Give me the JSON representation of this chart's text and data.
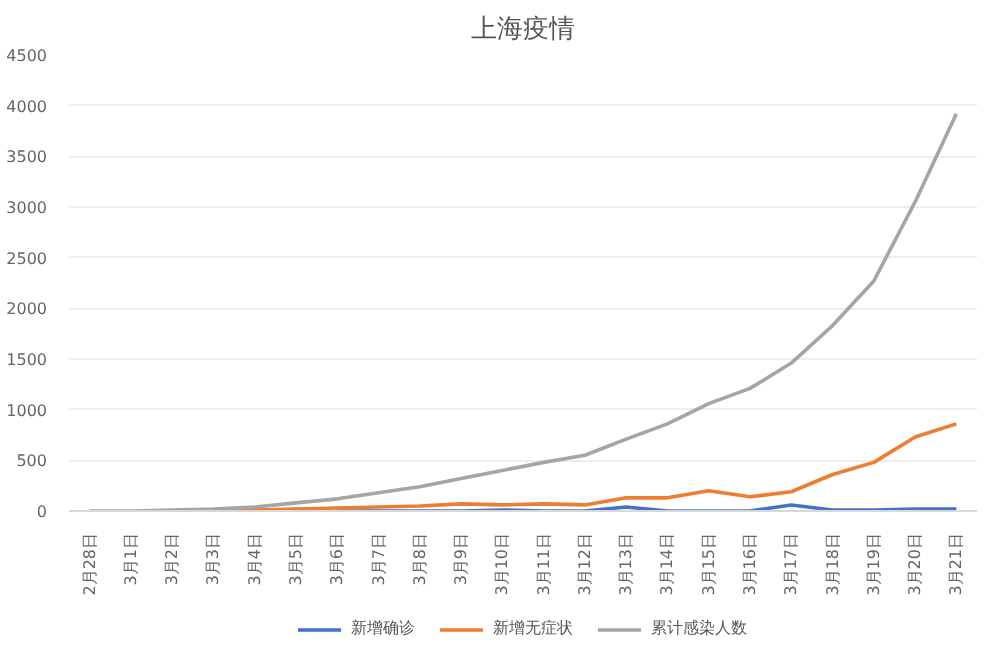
{
  "chart_data": {
    "type": "line",
    "title": "上海疫情",
    "categories": [
      "2月28日",
      "3月1日",
      "3月2日",
      "3月3日",
      "3月4日",
      "3月5日",
      "3月6日",
      "3月7日",
      "3月8日",
      "3月9日",
      "3月10日",
      "3月11日",
      "3月12日",
      "3月13日",
      "3月14日",
      "3月15日",
      "3月16日",
      "3月17日",
      "3月18日",
      "3月19日",
      "3月20日",
      "3月21日"
    ],
    "series": [
      {
        "name": "新增确诊",
        "color": "#4472c4",
        "values": [
          null,
          null,
          null,
          null,
          null,
          null,
          0,
          0,
          0,
          0,
          10,
          0,
          0,
          40,
          0,
          0,
          0,
          60,
          10,
          10,
          20,
          20
        ]
      },
      {
        "name": "新增无症状",
        "color": "#ed7d31",
        "values": [
          null,
          null,
          null,
          10,
          10,
          20,
          30,
          40,
          50,
          70,
          60,
          70,
          60,
          130,
          130,
          200,
          140,
          190,
          360,
          480,
          730,
          860
        ]
      },
      {
        "name": "累计感染人数",
        "color": "#a5a5a5",
        "values": [
          0,
          0,
          10,
          20,
          40,
          80,
          120,
          180,
          240,
          320,
          400,
          480,
          550,
          710,
          860,
          1060,
          1210,
          1460,
          1830,
          2270,
          3050,
          3920
        ]
      }
    ],
    "ylim": [
      0,
      4500
    ],
    "yticks": [
      0,
      500,
      1000,
      1500,
      2000,
      2500,
      3000,
      3500,
      4000,
      4500
    ],
    "grid": "y",
    "legend": "bottom",
    "marker": "none",
    "line_style": "solid"
  }
}
